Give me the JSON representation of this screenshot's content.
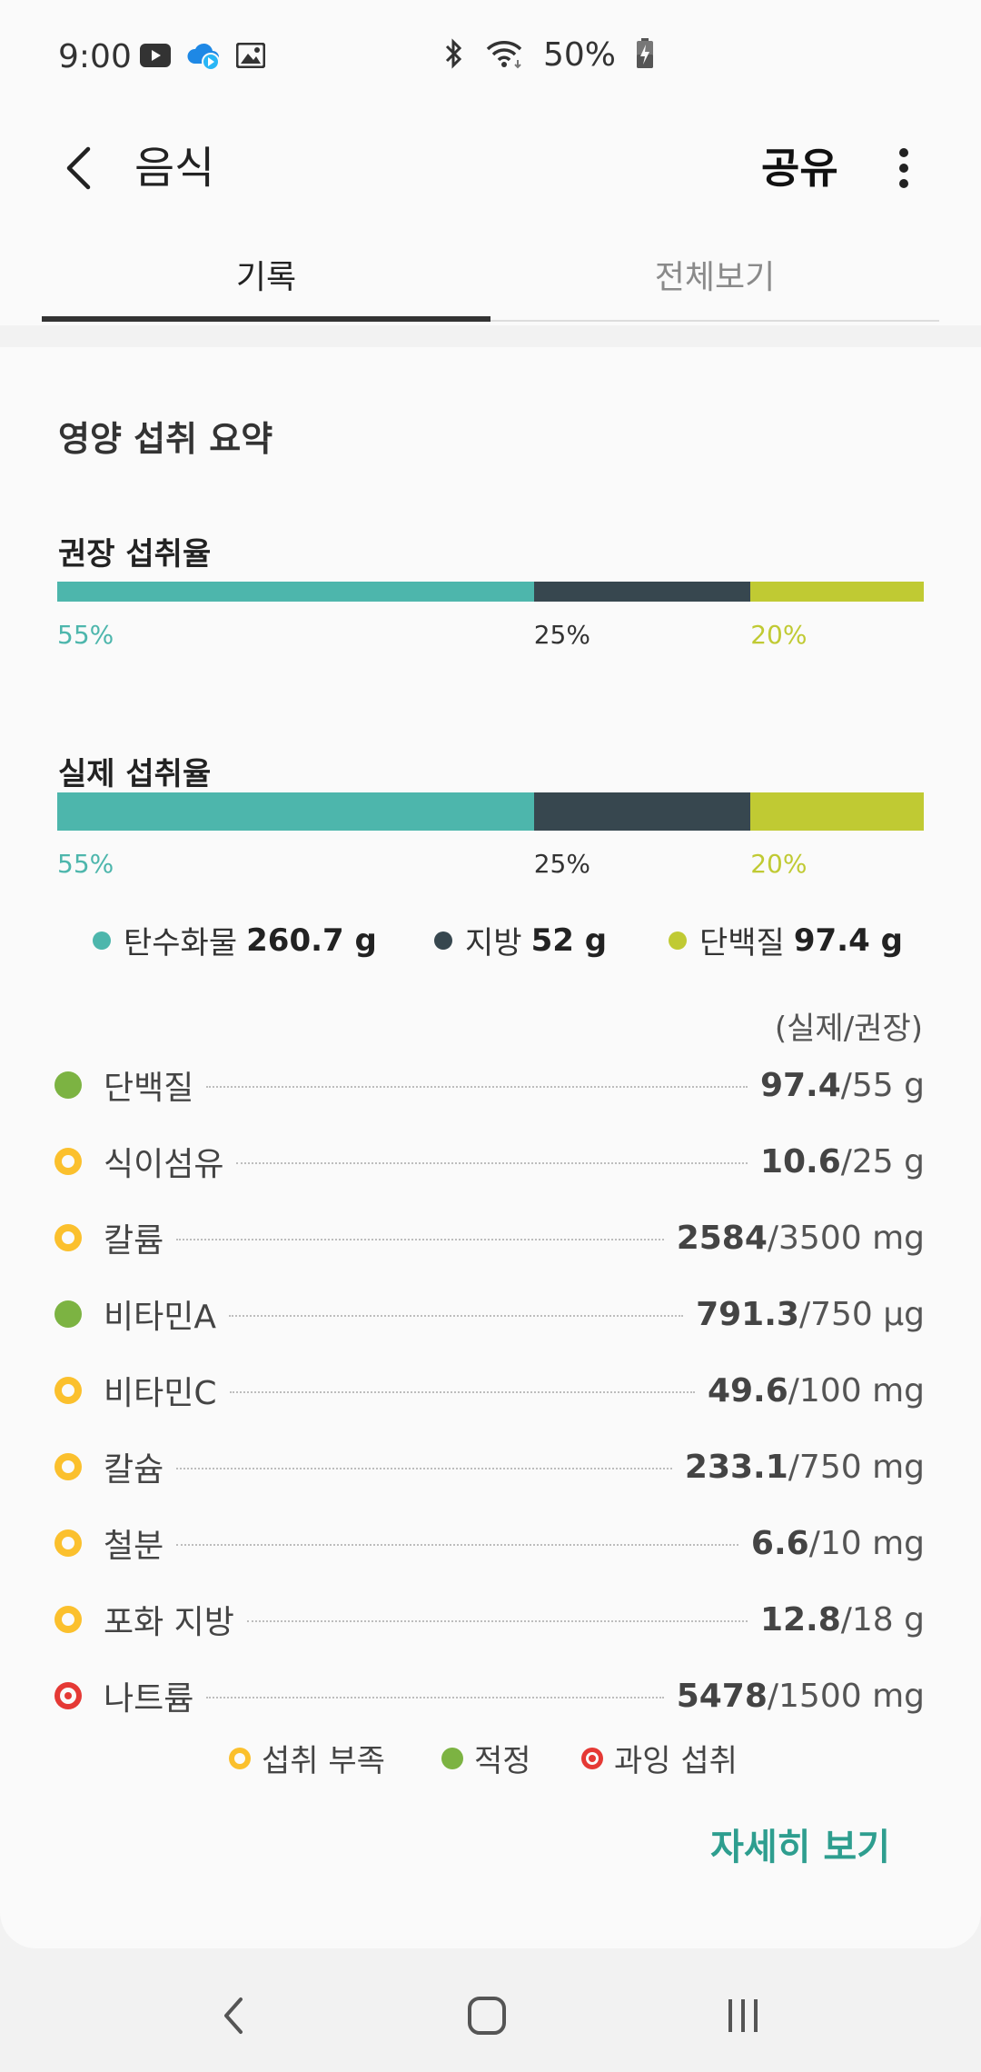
{
  "status_bar": {
    "time": "9:00",
    "battery": "50%",
    "left_icons": [
      "youtube-icon",
      "cloud-sync-icon",
      "gallery-icon"
    ],
    "right_icons": [
      "bluetooth-icon",
      "wifi-icon",
      "battery-charging-icon"
    ]
  },
  "app_bar": {
    "title": "음식",
    "share_label": "공유"
  },
  "tabs": [
    {
      "label": "기록",
      "active": true
    },
    {
      "label": "전체보기",
      "active": false
    }
  ],
  "summary": {
    "title": "영양 섭취 요약",
    "recommended": {
      "label": "권장 섭취율",
      "segments": [
        {
          "pct": 55,
          "label": "55%"
        },
        {
          "pct": 25,
          "label": "25%"
        },
        {
          "pct": 20,
          "label": "20%"
        }
      ]
    },
    "actual": {
      "label": "실제 섭취율",
      "segments": [
        {
          "pct": 55,
          "label": "55%"
        },
        {
          "pct": 25,
          "label": "25%"
        },
        {
          "pct": 20,
          "label": "20%"
        }
      ]
    },
    "macro_legend": [
      {
        "name": "탄수화물",
        "value": "260.7 g",
        "color": "#4db6ac"
      },
      {
        "name": "지방",
        "value": "52 g",
        "color": "#37474f"
      },
      {
        "name": "단백질",
        "value": "97.4 g",
        "color": "#c0ca33"
      }
    ],
    "column_note": "(실제/권장)"
  },
  "nutrients": [
    {
      "name": "단백질",
      "actual": "97.4",
      "recommended": "/55 g",
      "status": "ok"
    },
    {
      "name": "식이섬유",
      "actual": "10.6",
      "recommended": "/25 g",
      "status": "low"
    },
    {
      "name": "칼륨",
      "actual": "2584",
      "recommended": "/3500 mg",
      "status": "low"
    },
    {
      "name": "비타민A",
      "actual": "791.3",
      "recommended": "/750 μg",
      "status": "ok"
    },
    {
      "name": "비타민C",
      "actual": "49.6",
      "recommended": "/100 mg",
      "status": "low"
    },
    {
      "name": "칼슘",
      "actual": "233.1",
      "recommended": "/750 mg",
      "status": "low"
    },
    {
      "name": "철분",
      "actual": "6.6",
      "recommended": "/10 mg",
      "status": "low"
    },
    {
      "name": "포화 지방",
      "actual": "12.8",
      "recommended": "/18 g",
      "status": "low"
    },
    {
      "name": "나트륨",
      "actual": "5478",
      "recommended": "/1500 mg",
      "status": "high"
    }
  ],
  "status_legend": [
    {
      "label": "섭취 부족",
      "status": "low"
    },
    {
      "label": "적정",
      "status": "ok"
    },
    {
      "label": "과잉 섭취",
      "status": "high"
    }
  ],
  "detail_label": "자세히 보기",
  "colors": {
    "carb": "#4db6ac",
    "fat": "#37474f",
    "protein": "#c0ca33",
    "accent": "#2e9e8f",
    "ok": "#7cb342",
    "low": "#fbc02d",
    "high": "#e53935"
  }
}
